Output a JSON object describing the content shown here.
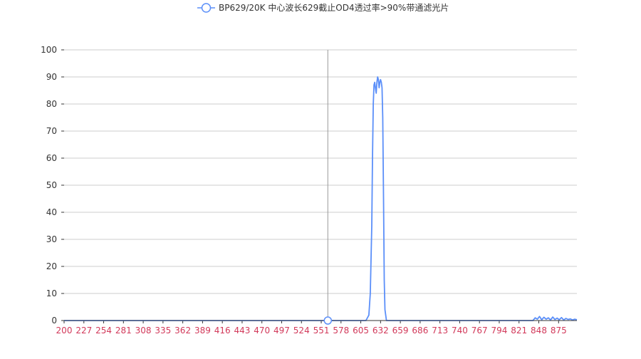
{
  "chart_data": {
    "type": "line",
    "title": "",
    "xlabel": "",
    "ylabel": "",
    "ylim": [
      0,
      100
    ],
    "xlim": [
      200,
      900
    ],
    "yticks": [
      0,
      10,
      20,
      30,
      40,
      50,
      60,
      70,
      80,
      90,
      100
    ],
    "xticks": [
      200,
      227,
      254,
      281,
      308,
      335,
      362,
      389,
      416,
      443,
      470,
      497,
      524,
      551,
      578,
      605,
      632,
      659,
      686,
      713,
      740,
      767,
      794,
      821,
      848,
      875
    ],
    "grid": true,
    "legend_position": "top-center",
    "crosshair_x": 560,
    "highlight_point": {
      "x": 560,
      "y": 0
    },
    "series": [
      {
        "name": "BP629/20K 中心波长629截止OD4透过率>90%带通滤光片",
        "color": "#5b8ff9",
        "x": [
          200,
          300,
          400,
          500,
          600,
          612,
          616,
          618,
          620,
          621,
          622,
          623,
          624,
          625,
          626,
          627,
          628,
          629,
          630,
          631,
          632,
          633,
          634,
          635,
          636,
          637,
          638,
          640,
          642,
          646,
          700,
          800,
          840,
          843,
          846,
          849,
          852,
          855,
          858,
          861,
          864,
          867,
          870,
          873,
          876,
          879,
          882,
          885,
          888,
          891,
          894,
          897,
          900
        ],
        "y": [
          0,
          0,
          0,
          0,
          0,
          0,
          2,
          10,
          35,
          60,
          80,
          87,
          88,
          86,
          84,
          88,
          90,
          89,
          86,
          88,
          89,
          88,
          86,
          75,
          45,
          15,
          4,
          0,
          0,
          0,
          0,
          0,
          0,
          1,
          0.5,
          1.5,
          0.3,
          1.2,
          0.5,
          1,
          0.2,
          1.3,
          0.4,
          0.9,
          0.3,
          1.1,
          0.2,
          0.8,
          0.4,
          0.6,
          0.2,
          0.5,
          0.3
        ]
      }
    ]
  }
}
